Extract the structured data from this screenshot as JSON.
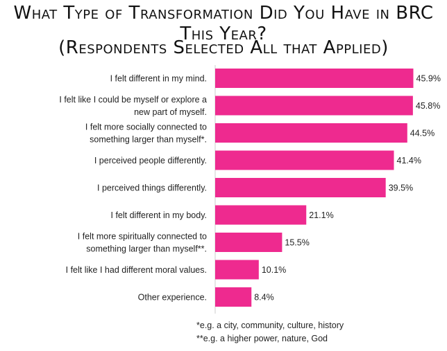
{
  "chart_data": {
    "type": "bar",
    "orientation": "horizontal",
    "title": "What Type of Transformation Did You Have in BRC This Year?",
    "subtitle": "(Respondents Selected All that Applied)",
    "categories": [
      [
        "I felt different in my mind."
      ],
      [
        "I felt like I could be myself or explore a",
        "new part of myself."
      ],
      [
        "I felt more socially connected to",
        "something larger than myself*."
      ],
      [
        "I perceived people differently."
      ],
      [
        "I perceived things differently."
      ],
      [
        "I felt different in my body."
      ],
      [
        "I felt more spiritually connected to",
        "something larger than myself**."
      ],
      [
        "I felt like I had different moral values."
      ],
      [
        "Other experience."
      ]
    ],
    "values": [
      45.9,
      45.8,
      44.5,
      41.4,
      39.5,
      21.1,
      15.5,
      10.1,
      8.4
    ],
    "value_labels": [
      "45.9%",
      "45.8%",
      "44.5%",
      "41.4%",
      "39.5%",
      "21.1%",
      "15.5%",
      "10.1%",
      "8.4%"
    ],
    "xlim": [
      0,
      50
    ],
    "grid": false,
    "legend": "none",
    "bar_color": "#ee2a8f",
    "axis_color": "#cccccc"
  },
  "footnotes": [
    "*e.g. a city, community, culture, history",
    "**e.g. a higher power, nature, God"
  ]
}
